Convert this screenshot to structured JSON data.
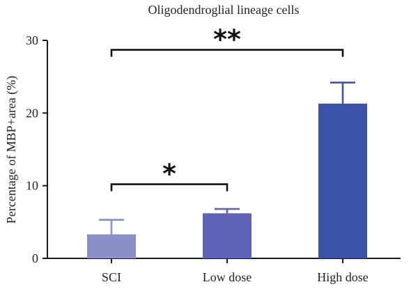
{
  "chart_data": {
    "type": "bar",
    "title": "Oligodendroglial lineage cells",
    "xlabel": "",
    "ylabel": "Percentage of MBP+area (%)",
    "categories": [
      "SCI",
      "Low dose",
      "High dose"
    ],
    "values": [
      3.3,
      6.2,
      21.3
    ],
    "errors": [
      2.0,
      0.6,
      2.9
    ],
    "colors": [
      "#8a8ec9",
      "#5d62b4",
      "#3c52a8"
    ],
    "ylim": [
      0,
      30
    ],
    "yticks": [
      0,
      10,
      20,
      30
    ],
    "grid": false,
    "significance": [
      {
        "from": 0,
        "to": 1,
        "label": "*",
        "level": 10.2
      },
      {
        "from": 0,
        "to": 2,
        "label": "**",
        "level": 28.7
      }
    ]
  }
}
